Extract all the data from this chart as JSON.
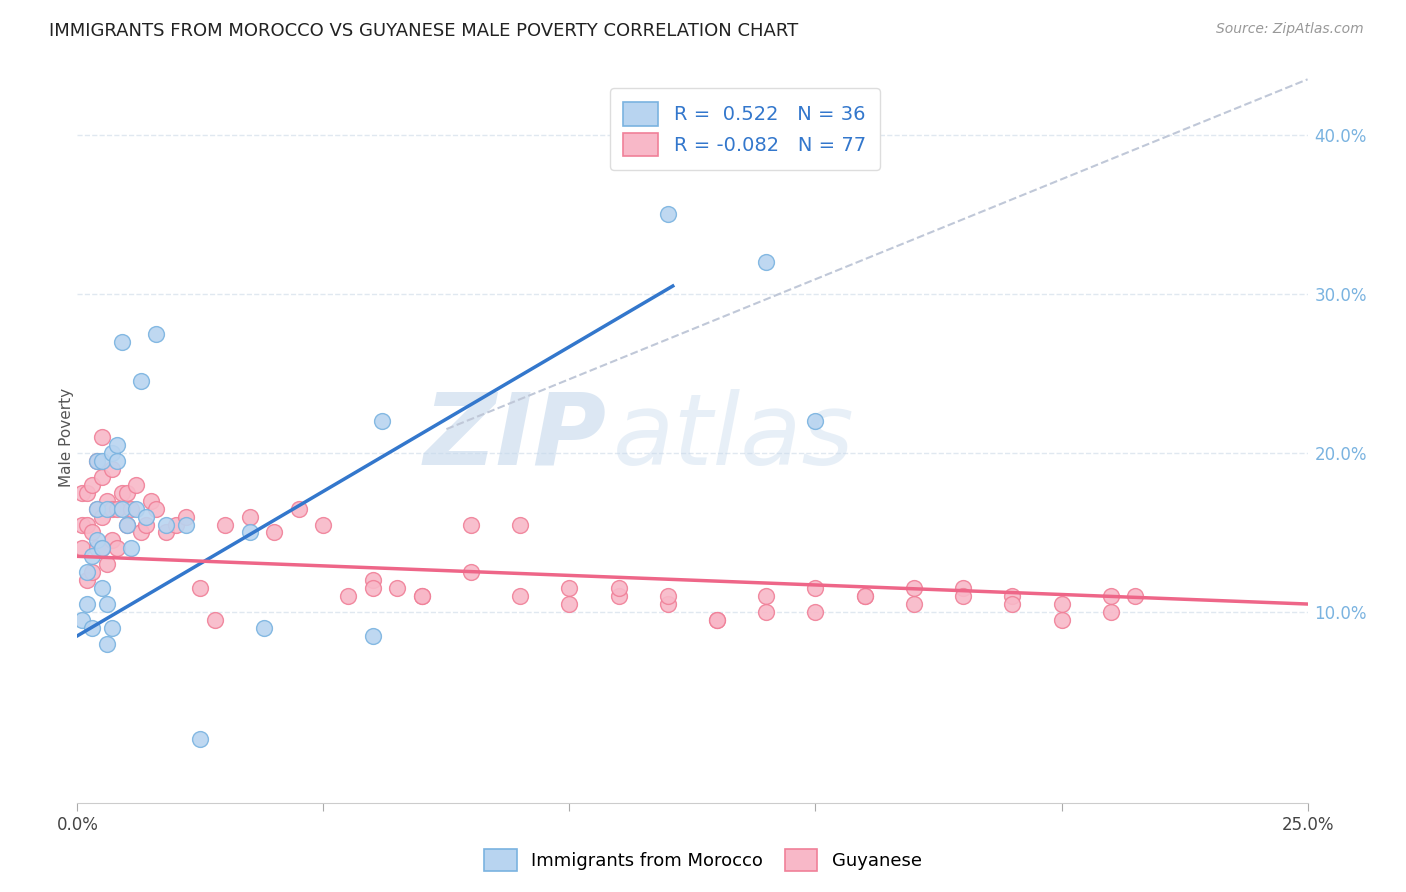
{
  "title": "IMMIGRANTS FROM MOROCCO VS GUYANESE MALE POVERTY CORRELATION CHART",
  "source": "Source: ZipAtlas.com",
  "ylabel": "Male Poverty",
  "right_yticks": [
    "10.0%",
    "20.0%",
    "30.0%",
    "40.0%"
  ],
  "right_ytick_vals": [
    0.1,
    0.2,
    0.3,
    0.4
  ],
  "xlim": [
    0.0,
    0.25
  ],
  "ylim": [
    -0.02,
    0.44
  ],
  "watermark_zip": "ZIP",
  "watermark_atlas": "atlas",
  "legend_label1": "Immigrants from Morocco",
  "legend_label2": "Guyanese",
  "blue_color": "#7ab3e0",
  "pink_color": "#f08098",
  "blue_fill": "#b8d4f0",
  "pink_fill": "#f8b8c8",
  "line_blue": "#3377cc",
  "line_pink": "#ee6688",
  "dashed_color": "#c0c8d8",
  "grid_color": "#e0e8f0",
  "morocco_x": [
    0.001,
    0.002,
    0.002,
    0.003,
    0.003,
    0.004,
    0.004,
    0.004,
    0.005,
    0.005,
    0.005,
    0.006,
    0.006,
    0.006,
    0.007,
    0.007,
    0.008,
    0.008,
    0.009,
    0.009,
    0.01,
    0.011,
    0.012,
    0.013,
    0.014,
    0.016,
    0.018,
    0.022,
    0.025,
    0.035,
    0.038,
    0.06,
    0.062,
    0.12,
    0.14,
    0.15
  ],
  "morocco_y": [
    0.095,
    0.105,
    0.125,
    0.09,
    0.135,
    0.145,
    0.165,
    0.195,
    0.14,
    0.195,
    0.115,
    0.105,
    0.08,
    0.165,
    0.09,
    0.2,
    0.195,
    0.205,
    0.27,
    0.165,
    0.155,
    0.14,
    0.165,
    0.245,
    0.16,
    0.275,
    0.155,
    0.155,
    0.02,
    0.15,
    0.09,
    0.085,
    0.22,
    0.35,
    0.32,
    0.22
  ],
  "guyanese_x": [
    0.001,
    0.001,
    0.001,
    0.002,
    0.002,
    0.002,
    0.003,
    0.003,
    0.003,
    0.004,
    0.004,
    0.004,
    0.005,
    0.005,
    0.005,
    0.005,
    0.006,
    0.006,
    0.007,
    0.007,
    0.007,
    0.008,
    0.008,
    0.009,
    0.01,
    0.01,
    0.011,
    0.012,
    0.013,
    0.014,
    0.015,
    0.016,
    0.018,
    0.02,
    0.022,
    0.025,
    0.028,
    0.03,
    0.035,
    0.04,
    0.045,
    0.05,
    0.055,
    0.06,
    0.065,
    0.07,
    0.08,
    0.09,
    0.1,
    0.11,
    0.12,
    0.13,
    0.14,
    0.15,
    0.16,
    0.17,
    0.18,
    0.19,
    0.2,
    0.21,
    0.215,
    0.06,
    0.07,
    0.08,
    0.09,
    0.1,
    0.11,
    0.12,
    0.13,
    0.14,
    0.15,
    0.16,
    0.17,
    0.18,
    0.19,
    0.2,
    0.21
  ],
  "guyanese_y": [
    0.14,
    0.155,
    0.175,
    0.12,
    0.155,
    0.175,
    0.125,
    0.15,
    0.18,
    0.14,
    0.165,
    0.195,
    0.14,
    0.16,
    0.185,
    0.21,
    0.13,
    0.17,
    0.145,
    0.165,
    0.19,
    0.14,
    0.165,
    0.175,
    0.155,
    0.175,
    0.165,
    0.18,
    0.15,
    0.155,
    0.17,
    0.165,
    0.15,
    0.155,
    0.16,
    0.115,
    0.095,
    0.155,
    0.16,
    0.15,
    0.165,
    0.155,
    0.11,
    0.12,
    0.115,
    0.11,
    0.155,
    0.11,
    0.115,
    0.11,
    0.105,
    0.095,
    0.11,
    0.1,
    0.11,
    0.105,
    0.115,
    0.11,
    0.095,
    0.1,
    0.11,
    0.115,
    0.11,
    0.125,
    0.155,
    0.105,
    0.115,
    0.11,
    0.095,
    0.1,
    0.115,
    0.11,
    0.115,
    0.11,
    0.105,
    0.105,
    0.11
  ],
  "blue_line_x": [
    0.0,
    0.121
  ],
  "blue_line_y": [
    0.085,
    0.305
  ],
  "pink_line_x": [
    0.0,
    0.25
  ],
  "pink_line_y": [
    0.135,
    0.105
  ],
  "dash_line_x": [
    0.075,
    0.25
  ],
  "dash_line_y": [
    0.215,
    0.435
  ]
}
